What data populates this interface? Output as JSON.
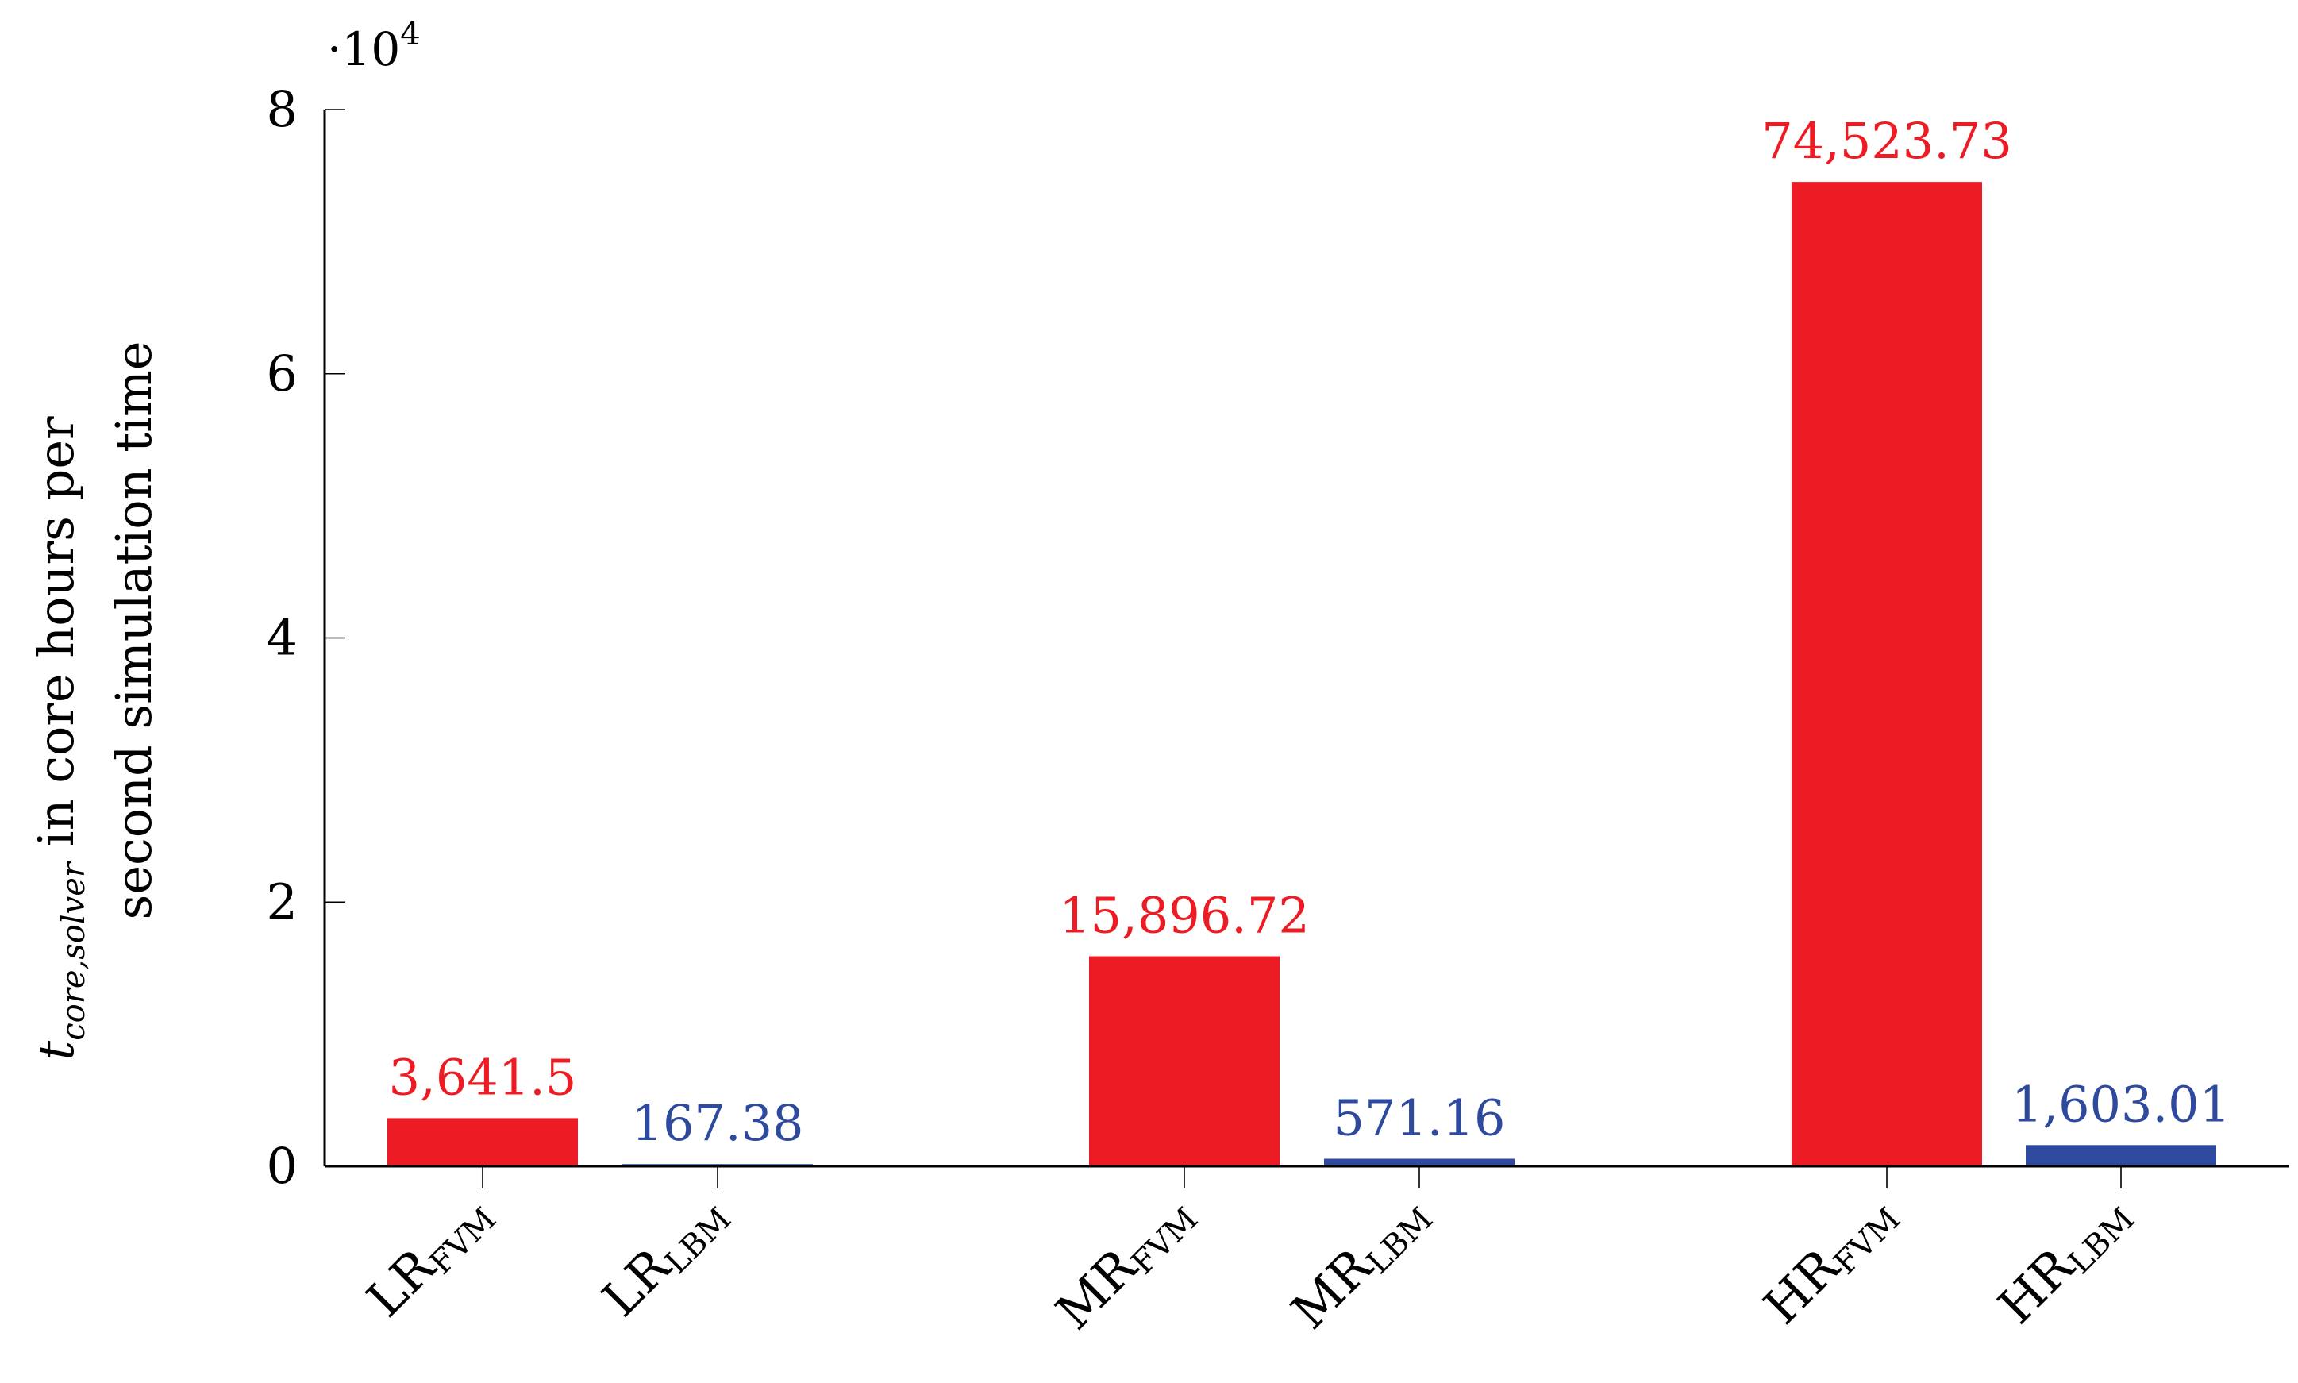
{
  "chart_data": {
    "type": "bar",
    "categories": [
      "LR_FVM",
      "LR_LBM",
      "MR_FVM",
      "MR_LBM",
      "HR_FVM",
      "HR_LBM"
    ],
    "category_labels": [
      {
        "main": "LR",
        "sub": "FVM"
      },
      {
        "main": "LR",
        "sub": "LBM"
      },
      {
        "main": "MR",
        "sub": "FVM"
      },
      {
        "main": "MR",
        "sub": "LBM"
      },
      {
        "main": "HR",
        "sub": "FVM"
      },
      {
        "main": "HR",
        "sub": "LBM"
      }
    ],
    "values": [
      3641.5,
      167.38,
      15896.72,
      571.16,
      74523.73,
      1603.01
    ],
    "data_labels": [
      "3,641.5",
      "167.38",
      "15,896.72",
      "571.16",
      "74,523.73",
      "1,603.01"
    ],
    "bar_colors": [
      "#ed1c24",
      "#2e4a9e",
      "#ed1c24",
      "#2e4a9e",
      "#ed1c24",
      "#2e4a9e"
    ],
    "groups": [
      "LR",
      "MR",
      "HR"
    ],
    "ylim": [
      0,
      80000
    ],
    "yticks": [
      0,
      20000,
      40000,
      60000,
      80000
    ],
    "ytick_labels": [
      "0",
      "2",
      "4",
      "6",
      "8"
    ],
    "y_multiplier": {
      "base": "·10",
      "exp": "4"
    },
    "ylabel": {
      "symbol": "t",
      "subscript": "core,solver",
      "line1_rest": " in core hours per",
      "line2": "second simulation time"
    },
    "title": "",
    "xlabel": "",
    "grid": false,
    "legend": "none"
  }
}
